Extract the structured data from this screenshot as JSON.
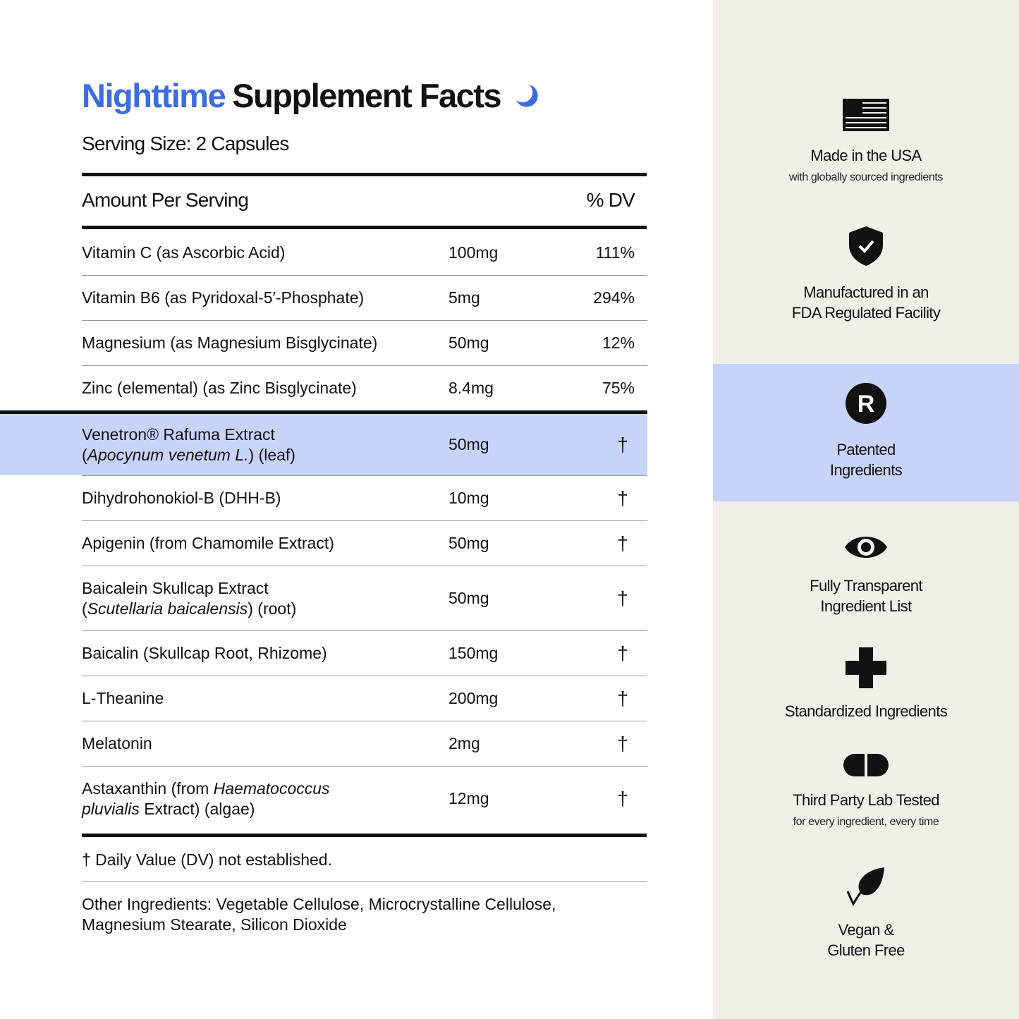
{
  "title": {
    "highlight": "Nighttime",
    "rest": "Supplement Facts"
  },
  "serving_size": "Serving Size: 2 Capsules",
  "header": {
    "amount": "Amount Per Serving",
    "dv": "% DV"
  },
  "table": {
    "rows": [
      {
        "name": [
          [
            "Vitamin C (as Ascorbic Acid)"
          ]
        ],
        "amount": "100mg",
        "dv": "111%"
      },
      {
        "name": [
          [
            "Vitamin B6 (as Pyridoxal-5′-Phosphate)"
          ]
        ],
        "amount": "5mg",
        "dv": "294%"
      },
      {
        "name": [
          [
            "Magnesium (as Magnesium Bisglycinate)"
          ]
        ],
        "amount": "50mg",
        "dv": "12%"
      },
      {
        "name": [
          [
            "Zinc (elemental) (as Zinc Bisglycinate)"
          ]
        ],
        "amount": "8.4mg",
        "dv": "75%"
      },
      {
        "name": [
          [
            "Venetron® Rafuma Extract"
          ],
          [
            "(",
            {
              "text": "Apocynum venetum L.",
              "italic": true
            },
            ") (leaf)"
          ]
        ],
        "amount": "50mg",
        "dv": "†",
        "highlighted": true,
        "divider_before": true
      },
      {
        "name": [
          [
            "Dihydrohonokiol-B (DHH-B)"
          ]
        ],
        "amount": "10mg",
        "dv": "†"
      },
      {
        "name": [
          [
            "Apigenin (from Chamomile Extract)"
          ]
        ],
        "amount": "50mg",
        "dv": "†"
      },
      {
        "name": [
          [
            "Baicalein Skullcap Extract"
          ],
          [
            "(",
            {
              "text": "Scutellaria baicalensis",
              "italic": true
            },
            ") (root)"
          ]
        ],
        "amount": "50mg",
        "dv": "†"
      },
      {
        "name": [
          [
            "Baicalin (Skullcap Root, Rhizome)"
          ]
        ],
        "amount": "150mg",
        "dv": "†"
      },
      {
        "name": [
          [
            "L-Theanine"
          ]
        ],
        "amount": "200mg",
        "dv": "†"
      },
      {
        "name": [
          [
            "Melatonin"
          ]
        ],
        "amount": "2mg",
        "dv": "†"
      },
      {
        "name": [
          [
            "Astaxanthin (from ",
            {
              "text": "Haematococcus",
              "italic": true
            }
          ],
          [
            {
              "text": "pluvialis",
              "italic": true
            },
            " Extract) (algae)"
          ]
        ],
        "amount": "12mg",
        "dv": "†"
      }
    ]
  },
  "footnote": "† Daily Value (DV) not established.",
  "other_ingredients": "Other Ingredients: Vegetable Cellulose, Microcrystalline Cellulose, Magnesium Stearate, Silicon Dioxide",
  "features": [
    {
      "lines": [
        "Made in the USA"
      ],
      "subtitle": "with globally sourced ingredients"
    },
    {
      "lines": [
        "Manufactured in an",
        "FDA Regulated Facility"
      ]
    },
    {
      "lines": [
        "Patented",
        "Ingredients"
      ],
      "highlighted": true
    },
    {
      "lines": [
        "Fully Transparent",
        "Ingredient List"
      ]
    },
    {
      "lines": [
        "Standardized Ingredients"
      ]
    },
    {
      "lines": [
        "Third Party Lab Tested"
      ],
      "subtitle": "for every ingredient, every time"
    },
    {
      "lines": [
        "Vegan &",
        "Gluten Free"
      ]
    }
  ]
}
